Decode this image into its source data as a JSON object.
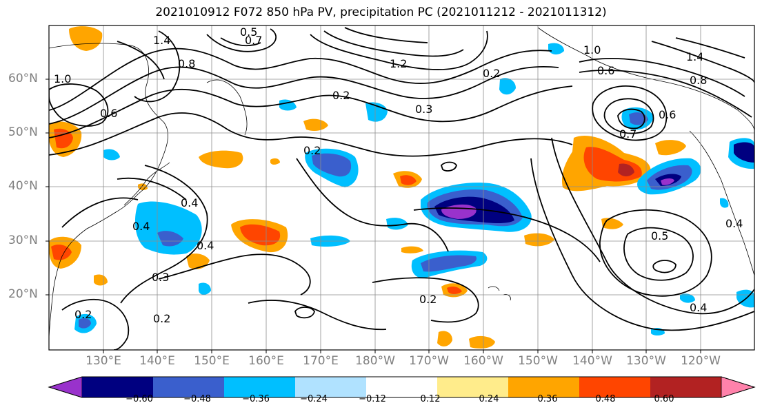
{
  "title": "2021010912 F072 850 hPa PV, precipitation PC (2021011212 - 2021011312)",
  "latitude_labels": [
    "60°N",
    "50°N",
    "40°N",
    "30°N",
    "20°N"
  ],
  "longitude_labels": [
    "130°E",
    "140°E",
    "150°E",
    "160°E",
    "170°E",
    "180°W",
    "170°W",
    "160°W",
    "150°W",
    "140°W",
    "130°W",
    "120°W"
  ],
  "colorbar": {
    "colors": [
      "#9932cc",
      "#000080",
      "#3a5fcd",
      "#00bfff",
      "#b0e2ff",
      "#ffffff",
      "#ffec8b",
      "#ffa500",
      "#ff4500",
      "#b22222",
      "#ff82ab"
    ],
    "tick_labels": [
      "−0.60",
      "−0.48",
      "−0.36",
      "−0.24",
      "−0.12",
      "0.12",
      "0.24",
      "0.36",
      "0.48",
      "0.60"
    ]
  },
  "contour_labels": [
    "1.4",
    "0.5",
    "0.7",
    "1.0",
    "0.8",
    "0.6",
    "1.2",
    "0.2",
    "0.3",
    "0.4",
    "0.2",
    "0.4",
    "0.4",
    "0.3",
    "0.2",
    "0.2",
    "0.6",
    "1.4",
    "0.8",
    "0.6",
    "0.7",
    "0.5",
    "0.4",
    "0.4",
    "1.0",
    "0.2",
    "0.2"
  ]
}
